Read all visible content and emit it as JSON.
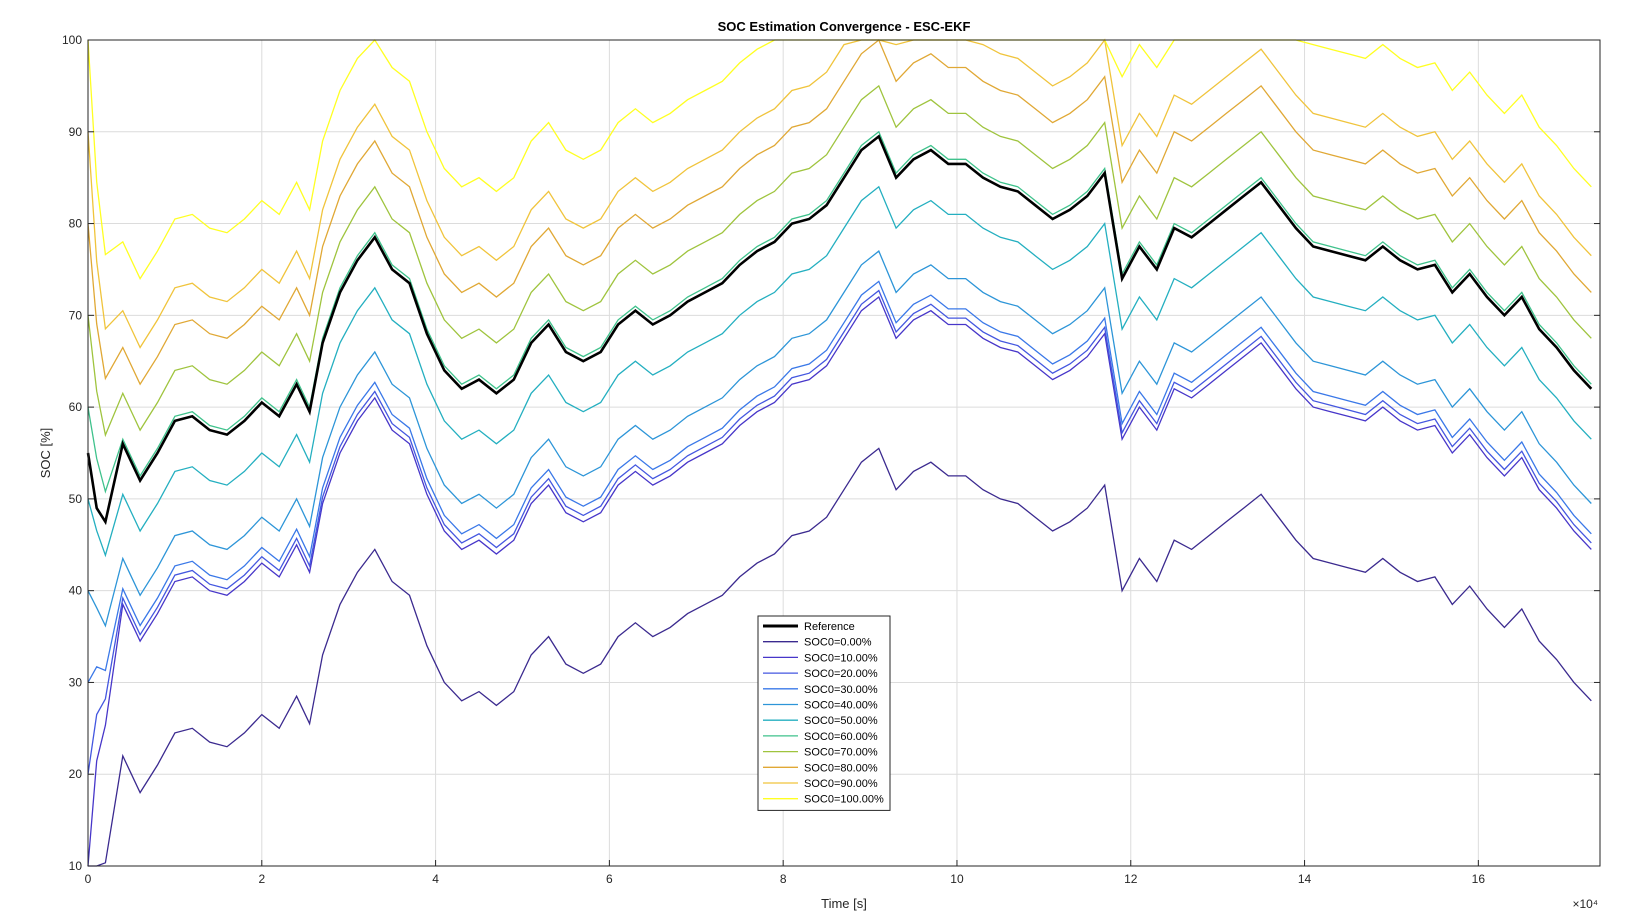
{
  "chart_data": {
    "type": "line",
    "title": "SOC Estimation Convergence - ESC-EKF",
    "xlabel": "Time [s]",
    "ylabel": "SOC [%]",
    "x_exponent_label": "×10⁴",
    "xlim": [
      0,
      174000
    ],
    "ylim": [
      10,
      100
    ],
    "xticks": [
      0,
      2,
      4,
      6,
      8,
      10,
      12,
      14,
      16
    ],
    "yticks": [
      10,
      20,
      30,
      40,
      50,
      60,
      70,
      80,
      90,
      100
    ],
    "grid": true,
    "legend_location": "bottom-center",
    "x": [
      0,
      1000,
      2000,
      4000,
      6000,
      8000,
      10000,
      12000,
      14000,
      16000,
      18000,
      20000,
      22000,
      24000,
      25500,
      27000,
      29000,
      31000,
      33000,
      35000,
      37000,
      39000,
      41000,
      43000,
      45000,
      47000,
      49000,
      51000,
      53000,
      55000,
      57000,
      59000,
      61000,
      63000,
      65000,
      67000,
      69000,
      71000,
      73000,
      75000,
      77000,
      79000,
      81000,
      83000,
      85000,
      87000,
      89000,
      91000,
      93000,
      95000,
      97000,
      99000,
      101000,
      103000,
      105000,
      107000,
      109000,
      111000,
      113000,
      115000,
      117000,
      119000,
      121000,
      123000,
      125000,
      127000,
      129000,
      131000,
      133000,
      135000,
      137000,
      139000,
      141000,
      143000,
      145000,
      147000,
      149000,
      151000,
      153000,
      155000,
      157000,
      159000,
      161000,
      163000,
      165000,
      167000,
      169000,
      171000,
      173000
    ],
    "reference": [
      55.0,
      49.0,
      47.5,
      56.0,
      52.0,
      55.0,
      58.5,
      59.0,
      57.5,
      57.0,
      58.5,
      60.5,
      59.0,
      62.5,
      59.5,
      67.0,
      72.5,
      76.0,
      78.5,
      75.0,
      73.5,
      68.0,
      64.0,
      62.0,
      63.0,
      61.5,
      63.0,
      67.0,
      69.0,
      66.0,
      65.0,
      66.0,
      69.0,
      70.5,
      69.0,
      70.0,
      71.5,
      72.5,
      73.5,
      75.5,
      77.0,
      78.0,
      80.0,
      80.5,
      82.0,
      85.0,
      88.0,
      89.5,
      85.0,
      87.0,
      88.0,
      86.5,
      86.5,
      85.0,
      84.0,
      83.5,
      82.0,
      80.5,
      81.5,
      83.0,
      85.5,
      74.0,
      77.5,
      75.0,
      79.5,
      78.5,
      80.0,
      81.5,
      83.0,
      84.5,
      82.0,
      79.5,
      77.5,
      77.0,
      76.5,
      76.0,
      77.5,
      76.0,
      75.0,
      75.5,
      72.5,
      74.5,
      72.0,
      70.0,
      72.0,
      68.5,
      66.5,
      64.0,
      62.0
    ],
    "series": [
      {
        "name": "SOC0=0.00%",
        "offset": -34.0,
        "color": "#3b2a8f"
      },
      {
        "name": "SOC0=10.00%",
        "offset": -17.5,
        "color": "#4736c9"
      },
      {
        "name": "SOC0=20.00%",
        "offset": -16.8,
        "color": "#4457e0"
      },
      {
        "name": "SOC0=30.00%",
        "offset": -15.8,
        "color": "#3a78e8"
      },
      {
        "name": "SOC0=40.00%",
        "offset": -12.5,
        "color": "#2d95d8"
      },
      {
        "name": "SOC0=50.00%",
        "offset": -5.5,
        "color": "#24afc0"
      },
      {
        "name": "SOC0=60.00%",
        "offset": 0.5,
        "color": "#3fc28c"
      },
      {
        "name": "SOC0=70.00%",
        "offset": 5.5,
        "color": "#9fc43e"
      },
      {
        "name": "SOC0=80.00%",
        "offset": 10.5,
        "color": "#e0a835"
      },
      {
        "name": "SOC0=90.00%",
        "offset": 14.5,
        "color": "#f0c43c"
      },
      {
        "name": "SOC0=100.00%",
        "offset": 22.0,
        "color": "#ffff22"
      }
    ],
    "series_start": [
      0,
      10,
      20,
      30,
      40,
      50,
      60,
      70,
      80,
      90,
      100
    ],
    "reference_name": "Reference",
    "reference_color": "#000000"
  }
}
